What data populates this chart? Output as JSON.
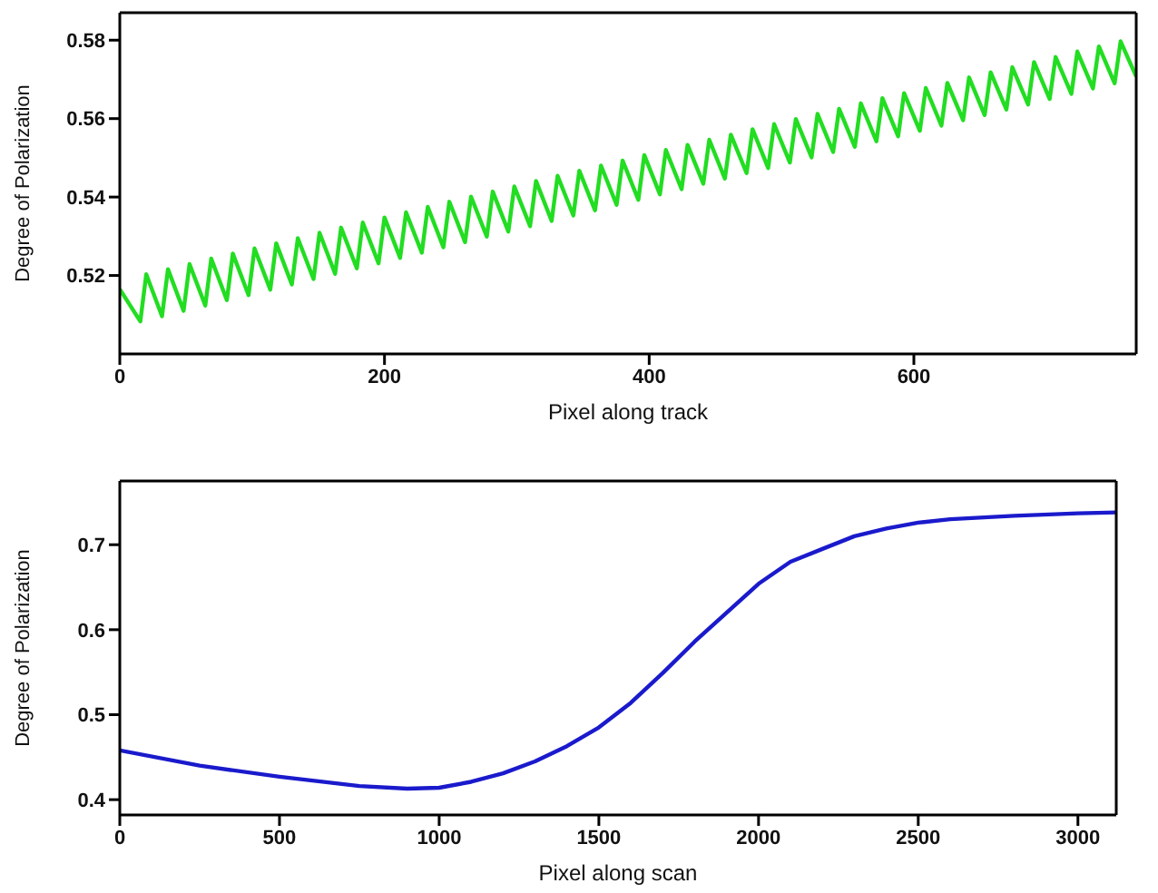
{
  "chart_data": [
    {
      "type": "line",
      "xlabel": "Pixel along track",
      "ylabel": "Degree of Polarization",
      "xlim": [
        0,
        768
      ],
      "xticks": [
        0,
        200,
        400,
        600
      ],
      "ylim": [
        0.5,
        0.587
      ],
      "yticks": [
        0.52,
        0.54,
        0.56,
        0.58
      ],
      "series": [
        {
          "color": "#22dd22",
          "x": [
            0,
            15.5,
            20,
            31.9,
            36.4,
            48.2,
            52.7,
            64.6,
            69.1,
            80.9,
            85.4,
            97.3,
            101.8,
            113.7,
            118.2,
            130.0,
            134.5,
            146.4,
            150.9,
            162.7,
            167.2,
            179.1,
            183.6,
            195.5,
            200.0,
            211.8,
            216.3,
            228.2,
            232.7,
            244.5,
            249.0,
            260.9,
            265.4,
            277.3,
            281.8,
            293.6,
            298.1,
            310.0,
            314.5,
            326.3,
            330.8,
            342.7,
            347.2,
            359.1,
            363.6,
            375.4,
            379.9,
            391.8,
            396.3,
            408.1,
            412.6,
            424.5,
            429.0,
            440.9,
            445.4,
            457.2,
            461.7,
            473.6,
            478.1,
            489.9,
            494.4,
            506.3,
            510.8,
            522.7,
            527.2,
            539.0,
            543.5,
            555.4,
            559.9,
            571.7,
            576.2,
            588.1,
            592.6,
            604.5,
            609.0,
            620.8,
            625.3,
            637.2,
            641.7,
            653.5,
            658.0,
            669.9,
            674.4,
            686.3,
            690.8,
            702.6,
            707.1,
            719.0,
            723.5,
            735.3,
            739.8,
            751.7,
            756.2,
            768
          ],
          "values": [
            0.5165,
            0.5083,
            0.5203,
            0.5096,
            0.5216,
            0.511,
            0.5229,
            0.5123,
            0.5243,
            0.5137,
            0.5256,
            0.515,
            0.5269,
            0.5164,
            0.5282,
            0.5177,
            0.5295,
            0.5191,
            0.5309,
            0.5204,
            0.5322,
            0.5218,
            0.5335,
            0.5231,
            0.5348,
            0.5245,
            0.5361,
            0.5258,
            0.5375,
            0.5272,
            0.5388,
            0.5285,
            0.5401,
            0.5299,
            0.5414,
            0.5312,
            0.5427,
            0.5326,
            0.5441,
            0.5339,
            0.5454,
            0.5353,
            0.5467,
            0.5366,
            0.548,
            0.538,
            0.5493,
            0.5393,
            0.5507,
            0.5407,
            0.552,
            0.542,
            0.5533,
            0.5434,
            0.5546,
            0.5447,
            0.5559,
            0.5461,
            0.5573,
            0.5474,
            0.5586,
            0.5488,
            0.5599,
            0.5501,
            0.5612,
            0.5515,
            0.5625,
            0.5528,
            0.5639,
            0.5542,
            0.5652,
            0.5555,
            0.5665,
            0.5569,
            0.5678,
            0.5582,
            0.5691,
            0.5596,
            0.5705,
            0.5609,
            0.5718,
            0.5623,
            0.5731,
            0.5636,
            0.5744,
            0.565,
            0.5757,
            0.5663,
            0.5771,
            0.5677,
            0.5784,
            0.569,
            0.5797,
            0.5707
          ]
        }
      ]
    },
    {
      "type": "line",
      "xlabel": "Pixel along scan",
      "ylabel": "Degree of Polarization",
      "xlim": [
        0,
        3120
      ],
      "xticks": [
        0,
        500,
        1000,
        1500,
        2000,
        2500,
        3000
      ],
      "ylim": [
        0.382,
        0.775
      ],
      "yticks": [
        0.4,
        0.5,
        0.6,
        0.7
      ],
      "series": [
        {
          "color": "#1a1acc",
          "x": [
            0,
            250,
            500,
            750,
            900,
            1000,
            1100,
            1200,
            1300,
            1400,
            1500,
            1600,
            1700,
            1800,
            1900,
            2000,
            2100,
            2200,
            2300,
            2400,
            2500,
            2600,
            2800,
            3000,
            3120
          ],
          "values": [
            0.458,
            0.44,
            0.427,
            0.416,
            0.413,
            0.414,
            0.421,
            0.431,
            0.445,
            0.463,
            0.485,
            0.514,
            0.549,
            0.586,
            0.62,
            0.654,
            0.68,
            0.695,
            0.71,
            0.719,
            0.726,
            0.73,
            0.734,
            0.737,
            0.738
          ]
        }
      ]
    }
  ]
}
